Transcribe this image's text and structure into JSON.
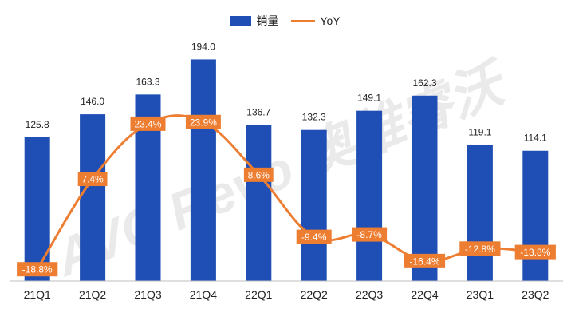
{
  "legend": {
    "bar_label": "销量",
    "line_label": "YoY"
  },
  "watermark": "AVC Revo 奥维睿沃",
  "colors": {
    "bar": "#1f4fb5",
    "line": "#ed7d31",
    "label_box": "#ed7d31",
    "axis": "#bfbfbf",
    "text": "#222222"
  },
  "chart_data": {
    "type": "bar",
    "categories": [
      "21Q1",
      "21Q2",
      "21Q3",
      "21Q4",
      "22Q1",
      "22Q2",
      "22Q3",
      "22Q4",
      "23Q1",
      "23Q2"
    ],
    "series": [
      {
        "name": "销量",
        "type": "bar",
        "values": [
          125.8,
          146.0,
          163.3,
          194.0,
          136.7,
          132.3,
          149.1,
          162.3,
          119.1,
          114.1
        ],
        "labels": [
          "125.8",
          "146.0",
          "163.3",
          "194.0",
          "136.7",
          "132.3",
          "149.1",
          "162.3",
          "119.1",
          "114.1"
        ]
      },
      {
        "name": "YoY",
        "type": "line",
        "values": [
          -18.8,
          7.4,
          23.4,
          23.9,
          8.6,
          -9.4,
          -8.7,
          -16.4,
          -12.8,
          -13.8
        ],
        "labels": [
          "-18.8%",
          "7.4%",
          "23.4%",
          "23.9%",
          "8.6%",
          "-9.4%",
          "-8.7%",
          "-16.4%",
          "-12.8%",
          "-13.8%"
        ]
      }
    ],
    "bar_axis": {
      "ylim": [
        0,
        200
      ]
    },
    "line_axis": {
      "ylim": [
        -25,
        50
      ]
    },
    "legend_position": "top-center",
    "grid": false
  }
}
